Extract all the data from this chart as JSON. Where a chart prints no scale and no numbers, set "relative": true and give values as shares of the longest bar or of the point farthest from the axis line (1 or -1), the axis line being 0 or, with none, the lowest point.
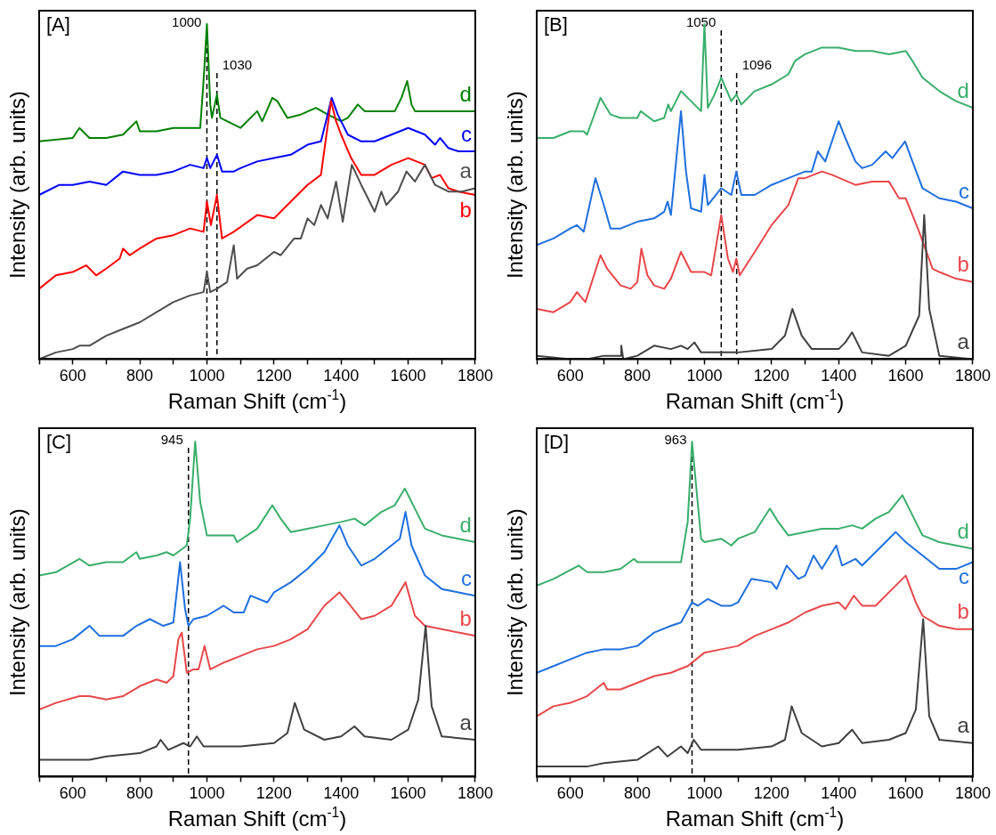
{
  "chart_data": [
    {
      "type": "line",
      "title": "[A]",
      "xlabel": "Raman Shift (cm$^{-1}$)",
      "ylabel": "Intensity (arb. units)",
      "relative": true,
      "marker": "none",
      "xlim": [
        500,
        1800
      ],
      "xticks": [
        {
          "value": 500,
          "label": null
        },
        600,
        {
          "value": 700,
          "label": null
        },
        800,
        {
          "value": 900,
          "label": null
        },
        1000,
        {
          "value": 1100,
          "label": null
        },
        1200,
        {
          "value": 1300,
          "label": null
        },
        1400,
        {
          "value": 1500,
          "label": null
        },
        1600,
        {
          "value": 1700,
          "label": null
        },
        1800
      ],
      "ref_lines": [
        {
          "axis": "x",
          "value": 1000,
          "label": "1000",
          "color": "#000000",
          "line_style": "dashed"
        },
        {
          "axis": "x",
          "value": 1030,
          "label": "1030",
          "color": "#000000",
          "line_style": "dashed"
        }
      ],
      "series": [
        {
          "name": "a",
          "color": "#4d4d4d",
          "x": [
            500,
            550,
            600,
            620,
            650,
            700,
            750,
            800,
            850,
            900,
            950,
            990,
            1000,
            1010,
            1030,
            1060,
            1080,
            1090,
            1120,
            1150,
            1200,
            1220,
            1260,
            1280,
            1300,
            1320,
            1340,
            1360,
            1385,
            1405,
            1432,
            1460,
            1500,
            1520,
            1535,
            1570,
            1595,
            1620,
            1650,
            1680,
            1720,
            1760,
            1800
          ],
          "values": [
            0.0,
            0.02,
            0.03,
            0.04,
            0.04,
            0.07,
            0.09,
            0.11,
            0.14,
            0.17,
            0.19,
            0.2,
            0.26,
            0.2,
            0.21,
            0.23,
            0.34,
            0.24,
            0.27,
            0.28,
            0.32,
            0.31,
            0.36,
            0.36,
            0.42,
            0.4,
            0.46,
            0.42,
            0.53,
            0.41,
            0.58,
            0.52,
            0.44,
            0.5,
            0.46,
            0.5,
            0.56,
            0.53,
            0.58,
            0.52,
            0.5,
            0.5,
            0.51
          ]
        },
        {
          "name": "b",
          "color": "#ff0000",
          "x": [
            500,
            550,
            600,
            640,
            670,
            700,
            740,
            750,
            770,
            800,
            850,
            900,
            950,
            990,
            1000,
            1012,
            1030,
            1045,
            1080,
            1150,
            1200,
            1250,
            1300,
            1340,
            1355,
            1370,
            1385,
            1400,
            1430,
            1460,
            1500,
            1550,
            1600,
            1650,
            1670,
            1695,
            1720,
            1750,
            1800
          ],
          "values": [
            0.21,
            0.25,
            0.26,
            0.28,
            0.25,
            0.27,
            0.3,
            0.33,
            0.31,
            0.33,
            0.36,
            0.37,
            0.39,
            0.38,
            0.47,
            0.4,
            0.49,
            0.36,
            0.38,
            0.43,
            0.42,
            0.47,
            0.52,
            0.55,
            0.66,
            0.77,
            0.71,
            0.67,
            0.6,
            0.55,
            0.55,
            0.58,
            0.6,
            0.58,
            0.54,
            0.55,
            0.51,
            0.5,
            0.49
          ]
        },
        {
          "name": "c",
          "color": "#0000ff",
          "x": [
            500,
            560,
            600,
            650,
            700,
            750,
            800,
            850,
            900,
            950,
            990,
            1000,
            1010,
            1030,
            1045,
            1080,
            1100,
            1150,
            1200,
            1250,
            1300,
            1340,
            1355,
            1372,
            1390,
            1420,
            1460,
            1500,
            1550,
            1600,
            1650,
            1680,
            1695,
            1720,
            1750,
            1800
          ],
          "values": [
            0.49,
            0.52,
            0.52,
            0.53,
            0.52,
            0.56,
            0.55,
            0.55,
            0.56,
            0.58,
            0.57,
            0.6,
            0.57,
            0.61,
            0.56,
            0.56,
            0.57,
            0.59,
            0.6,
            0.61,
            0.64,
            0.65,
            0.71,
            0.78,
            0.73,
            0.67,
            0.65,
            0.65,
            0.67,
            0.69,
            0.67,
            0.64,
            0.66,
            0.63,
            0.62,
            0.62
          ]
        },
        {
          "name": "d",
          "color": "#008000",
          "x": [
            500,
            600,
            620,
            650,
            700,
            750,
            790,
            800,
            850,
            900,
            950,
            980,
            990,
            1000,
            1010,
            1015,
            1030,
            1040,
            1060,
            1100,
            1150,
            1165,
            1195,
            1210,
            1240,
            1280,
            1325,
            1360,
            1400,
            1420,
            1450,
            1470,
            1500,
            1560,
            1580,
            1597,
            1610,
            1620,
            1700,
            1800
          ],
          "values": [
            0.65,
            0.66,
            0.69,
            0.66,
            0.66,
            0.67,
            0.71,
            0.68,
            0.68,
            0.69,
            0.69,
            0.69,
            0.83,
            1.0,
            0.76,
            0.72,
            0.79,
            0.72,
            0.71,
            0.69,
            0.74,
            0.71,
            0.78,
            0.77,
            0.72,
            0.73,
            0.75,
            0.73,
            0.71,
            0.72,
            0.76,
            0.74,
            0.74,
            0.74,
            0.78,
            0.83,
            0.76,
            0.74,
            0.74,
            0.74
          ]
        }
      ]
    },
    {
      "type": "line",
      "title": "[B]",
      "xlabel": "Raman Shift (cm$^{-1}$)",
      "ylabel": "Intensity (arb. units)",
      "relative": true,
      "marker": "none",
      "xlim": [
        500,
        1800
      ],
      "xticks": [
        {
          "value": 500,
          "label": null
        },
        600,
        {
          "value": 700,
          "label": null
        },
        800,
        {
          "value": 900,
          "label": null
        },
        1000,
        {
          "value": 1100,
          "label": null
        },
        1200,
        {
          "value": 1300,
          "label": null
        },
        1400,
        {
          "value": 1500,
          "label": null
        },
        1600,
        {
          "value": 1700,
          "label": null
        },
        1800
      ],
      "ref_lines": [
        {
          "axis": "x",
          "value": 1050,
          "label": "1050",
          "color": "#000000",
          "line_style": "dashed"
        },
        {
          "axis": "x",
          "value": 1096,
          "label": "1096",
          "color": "#000000",
          "line_style": "dashed"
        }
      ],
      "series": [
        {
          "name": "a",
          "color": "#404040",
          "x": [
            500,
            600,
            650,
            700,
            750,
            752,
            758,
            800,
            850,
            900,
            930,
            950,
            970,
            990,
            1050,
            1100,
            1200,
            1240,
            1262,
            1290,
            1320,
            1400,
            1420,
            1440,
            1470,
            1550,
            1600,
            1640,
            1655,
            1670,
            1700,
            1800
          ],
          "values": [
            0.01,
            0.0,
            0.0,
            0.01,
            0.01,
            0.04,
            0.0,
            0.01,
            0.04,
            0.03,
            0.04,
            0.03,
            0.05,
            0.02,
            0.02,
            0.02,
            0.03,
            0.07,
            0.15,
            0.07,
            0.03,
            0.03,
            0.05,
            0.08,
            0.02,
            0.01,
            0.04,
            0.13,
            0.43,
            0.15,
            0.01,
            0.0
          ]
        },
        {
          "name": "b",
          "color": "#e8474a",
          "x": [
            500,
            550,
            600,
            620,
            645,
            690,
            710,
            750,
            780,
            800,
            812,
            830,
            850,
            880,
            900,
            930,
            960,
            1000,
            1020,
            1050,
            1070,
            1085,
            1095,
            1105,
            1150,
            1200,
            1250,
            1280,
            1300,
            1350,
            1380,
            1450,
            1500,
            1550,
            1580,
            1600,
            1640,
            1680,
            1700,
            1750,
            1800
          ],
          "values": [
            0.15,
            0.14,
            0.17,
            0.2,
            0.17,
            0.31,
            0.27,
            0.22,
            0.21,
            0.23,
            0.33,
            0.25,
            0.22,
            0.21,
            0.24,
            0.32,
            0.26,
            0.26,
            0.25,
            0.43,
            0.3,
            0.26,
            0.3,
            0.25,
            0.32,
            0.4,
            0.46,
            0.54,
            0.54,
            0.56,
            0.55,
            0.52,
            0.53,
            0.53,
            0.48,
            0.48,
            0.38,
            0.27,
            0.26,
            0.24,
            0.23
          ]
        },
        {
          "name": "c",
          "color": "#1f6fdf",
          "x": [
            500,
            550,
            600,
            620,
            640,
            675,
            700,
            720,
            750,
            800,
            850,
            880,
            890,
            900,
            930,
            945,
            960,
            990,
            1000,
            1010,
            1050,
            1080,
            1095,
            1110,
            1150,
            1200,
            1250,
            1300,
            1320,
            1338,
            1360,
            1400,
            1420,
            1450,
            1470,
            1500,
            1540,
            1560,
            1598,
            1620,
            1650,
            1700,
            1750,
            1800
          ],
          "values": [
            0.34,
            0.36,
            0.39,
            0.4,
            0.38,
            0.54,
            0.46,
            0.39,
            0.39,
            0.41,
            0.42,
            0.44,
            0.47,
            0.43,
            0.74,
            0.56,
            0.45,
            0.44,
            0.55,
            0.46,
            0.51,
            0.49,
            0.56,
            0.49,
            0.49,
            0.52,
            0.54,
            0.56,
            0.56,
            0.62,
            0.59,
            0.71,
            0.66,
            0.59,
            0.57,
            0.58,
            0.62,
            0.6,
            0.65,
            0.59,
            0.51,
            0.48,
            0.47,
            0.45
          ]
        },
        {
          "name": "d",
          "color": "#3aae6b",
          "x": [
            500,
            550,
            600,
            640,
            650,
            690,
            720,
            750,
            800,
            810,
            850,
            880,
            892,
            900,
            930,
            950,
            990,
            1000,
            1010,
            1030,
            1050,
            1080,
            1095,
            1110,
            1150,
            1200,
            1250,
            1270,
            1300,
            1350,
            1400,
            1450,
            1500,
            1550,
            1600,
            1620,
            1650,
            1700,
            1750,
            1800
          ],
          "values": [
            0.66,
            0.66,
            0.68,
            0.68,
            0.67,
            0.78,
            0.73,
            0.72,
            0.72,
            0.74,
            0.71,
            0.72,
            0.76,
            0.74,
            0.8,
            0.78,
            0.74,
            1.0,
            0.75,
            0.79,
            0.84,
            0.77,
            0.79,
            0.76,
            0.8,
            0.82,
            0.85,
            0.89,
            0.91,
            0.93,
            0.93,
            0.92,
            0.92,
            0.91,
            0.92,
            0.89,
            0.84,
            0.8,
            0.77,
            0.75
          ]
        }
      ]
    },
    {
      "type": "line",
      "title": "[C]",
      "xlabel": "Raman Shift (cm$^{-1}$)",
      "ylabel": "Intensity (arb. units)",
      "relative": true,
      "marker": "none",
      "xlim": [
        500,
        1800
      ],
      "xticks": [
        {
          "value": 500,
          "label": null
        },
        600,
        {
          "value": 700,
          "label": null
        },
        800,
        {
          "value": 900,
          "label": null
        },
        1000,
        {
          "value": 1100,
          "label": null
        },
        1200,
        {
          "value": 1300,
          "label": null
        },
        1400,
        {
          "value": 1500,
          "label": null
        },
        1600,
        {
          "value": 1700,
          "label": null
        },
        1800
      ],
      "ref_lines": [
        {
          "axis": "x",
          "value": 945,
          "label": "945",
          "color": "#000000",
          "line_style": "dashed"
        }
      ],
      "series": [
        {
          "name": "a",
          "color": "#404040",
          "x": [
            500,
            600,
            650,
            700,
            800,
            850,
            862,
            885,
            930,
            950,
            970,
            990,
            1100,
            1200,
            1240,
            1262,
            1290,
            1350,
            1400,
            1440,
            1470,
            1550,
            1600,
            1630,
            1652,
            1670,
            1700,
            1800
          ],
          "values": [
            0.05,
            0.05,
            0.05,
            0.06,
            0.07,
            0.09,
            0.11,
            0.08,
            0.1,
            0.09,
            0.12,
            0.09,
            0.09,
            0.1,
            0.13,
            0.22,
            0.14,
            0.11,
            0.12,
            0.15,
            0.12,
            0.11,
            0.14,
            0.23,
            0.45,
            0.21,
            0.12,
            0.11
          ]
        },
        {
          "name": "b",
          "color": "#e8474a",
          "x": [
            500,
            550,
            620,
            650,
            700,
            750,
            800,
            850,
            880,
            900,
            915,
            925,
            940,
            960,
            975,
            993,
            1010,
            1050,
            1100,
            1150,
            1200,
            1250,
            1300,
            1350,
            1395,
            1420,
            1460,
            1500,
            1550,
            1592,
            1620,
            1650,
            1700,
            1750,
            1800
          ],
          "values": [
            0.2,
            0.22,
            0.24,
            0.24,
            0.23,
            0.24,
            0.27,
            0.29,
            0.28,
            0.3,
            0.41,
            0.43,
            0.31,
            0.32,
            0.32,
            0.39,
            0.32,
            0.34,
            0.36,
            0.38,
            0.39,
            0.41,
            0.44,
            0.51,
            0.55,
            0.52,
            0.47,
            0.48,
            0.51,
            0.58,
            0.48,
            0.45,
            0.44,
            0.43,
            0.42
          ]
        },
        {
          "name": "c",
          "color": "#1f6fdf",
          "x": [
            500,
            550,
            600,
            650,
            680,
            720,
            750,
            790,
            830,
            870,
            900,
            920,
            935,
            945,
            960,
            1000,
            1050,
            1080,
            1110,
            1130,
            1180,
            1200,
            1250,
            1300,
            1350,
            1395,
            1420,
            1460,
            1500,
            1550,
            1575,
            1592,
            1610,
            1650,
            1700,
            1750,
            1800
          ],
          "values": [
            0.39,
            0.39,
            0.41,
            0.45,
            0.42,
            0.42,
            0.42,
            0.45,
            0.47,
            0.45,
            0.46,
            0.64,
            0.5,
            0.45,
            0.47,
            0.48,
            0.51,
            0.49,
            0.49,
            0.54,
            0.52,
            0.55,
            0.58,
            0.62,
            0.67,
            0.75,
            0.69,
            0.63,
            0.65,
            0.69,
            0.71,
            0.79,
            0.69,
            0.6,
            0.56,
            0.55,
            0.54
          ]
        },
        {
          "name": "d",
          "color": "#3aae6b",
          "x": [
            500,
            550,
            620,
            650,
            700,
            750,
            790,
            800,
            850,
            880,
            900,
            940,
            950,
            965,
            980,
            1000,
            1050,
            1080,
            1090,
            1150,
            1195,
            1220,
            1250,
            1300,
            1350,
            1400,
            1440,
            1470,
            1520,
            1560,
            1590,
            1620,
            1650,
            1700,
            1750,
            1800
          ],
          "values": [
            0.6,
            0.61,
            0.65,
            0.63,
            0.64,
            0.64,
            0.67,
            0.65,
            0.66,
            0.67,
            0.66,
            0.69,
            0.77,
            1.0,
            0.82,
            0.72,
            0.72,
            0.72,
            0.7,
            0.74,
            0.81,
            0.77,
            0.73,
            0.74,
            0.75,
            0.76,
            0.77,
            0.75,
            0.79,
            0.81,
            0.86,
            0.8,
            0.74,
            0.72,
            0.71,
            0.7
          ]
        }
      ]
    },
    {
      "type": "line",
      "title": "[D]",
      "xlabel": "Raman Shift (cm$^{-1}$)",
      "ylabel": "Intensity (arb. units)",
      "relative": true,
      "marker": "none",
      "xlim": [
        500,
        1800
      ],
      "xticks": [
        {
          "value": 500,
          "label": null
        },
        600,
        {
          "value": 700,
          "label": null
        },
        800,
        {
          "value": 900,
          "label": null
        },
        1000,
        {
          "value": 1100,
          "label": null
        },
        1200,
        {
          "value": 1300,
          "label": null
        },
        1400,
        {
          "value": 1500,
          "label": null
        },
        1600,
        {
          "value": 1700,
          "label": null
        },
        1800
      ],
      "ref_lines": [
        {
          "axis": "x",
          "value": 963,
          "label": "963",
          "color": "#000000",
          "line_style": "dashed"
        }
      ],
      "series": [
        {
          "name": "a",
          "color": "#404040",
          "x": [
            500,
            600,
            650,
            700,
            800,
            862,
            890,
            930,
            950,
            968,
            990,
            1100,
            1200,
            1240,
            1260,
            1290,
            1350,
            1400,
            1440,
            1470,
            1550,
            1600,
            1630,
            1652,
            1670,
            1700,
            1800
          ],
          "values": [
            0.03,
            0.03,
            0.03,
            0.04,
            0.05,
            0.09,
            0.06,
            0.09,
            0.07,
            0.11,
            0.08,
            0.08,
            0.09,
            0.11,
            0.21,
            0.13,
            0.09,
            0.1,
            0.14,
            0.1,
            0.11,
            0.13,
            0.2,
            0.47,
            0.18,
            0.11,
            0.1
          ]
        },
        {
          "name": "b",
          "color": "#e8474a",
          "x": [
            500,
            550,
            600,
            650,
            700,
            710,
            750,
            800,
            850,
            900,
            950,
            1000,
            1050,
            1100,
            1150,
            1200,
            1250,
            1300,
            1350,
            1400,
            1420,
            1445,
            1470,
            1510,
            1550,
            1600,
            1630,
            1650,
            1700,
            1750,
            1800
          ],
          "values": [
            0.18,
            0.21,
            0.22,
            0.24,
            0.28,
            0.26,
            0.26,
            0.28,
            0.3,
            0.31,
            0.33,
            0.37,
            0.38,
            0.39,
            0.42,
            0.44,
            0.46,
            0.49,
            0.51,
            0.52,
            0.5,
            0.54,
            0.51,
            0.51,
            0.55,
            0.6,
            0.52,
            0.48,
            0.45,
            0.44,
            0.44
          ]
        },
        {
          "name": "c",
          "color": "#1f6fdf",
          "x": [
            500,
            550,
            600,
            650,
            700,
            750,
            800,
            850,
            900,
            930,
            963,
            980,
            1010,
            1050,
            1080,
            1100,
            1140,
            1200,
            1215,
            1245,
            1280,
            1300,
            1325,
            1350,
            1393,
            1410,
            1450,
            1470,
            1500,
            1540,
            1570,
            1600,
            1650,
            1700,
            1750,
            1800
          ],
          "values": [
            0.31,
            0.33,
            0.35,
            0.37,
            0.38,
            0.38,
            0.39,
            0.43,
            0.45,
            0.46,
            0.52,
            0.51,
            0.53,
            0.51,
            0.51,
            0.52,
            0.59,
            0.58,
            0.56,
            0.63,
            0.59,
            0.6,
            0.66,
            0.62,
            0.69,
            0.63,
            0.65,
            0.63,
            0.66,
            0.7,
            0.73,
            0.7,
            0.66,
            0.62,
            0.62,
            0.64
          ]
        },
        {
          "name": "d",
          "color": "#3aae6b",
          "x": [
            500,
            550,
            625,
            650,
            700,
            750,
            790,
            800,
            850,
            900,
            930,
            950,
            963,
            975,
            990,
            1000,
            1050,
            1080,
            1100,
            1150,
            1195,
            1220,
            1250,
            1300,
            1350,
            1400,
            1440,
            1470,
            1510,
            1550,
            1590,
            1620,
            1650,
            1700,
            1750,
            1800
          ],
          "values": [
            0.57,
            0.59,
            0.63,
            0.61,
            0.61,
            0.62,
            0.65,
            0.64,
            0.64,
            0.64,
            0.64,
            0.76,
            1.0,
            0.87,
            0.71,
            0.7,
            0.71,
            0.69,
            0.71,
            0.73,
            0.8,
            0.76,
            0.72,
            0.73,
            0.74,
            0.74,
            0.75,
            0.74,
            0.77,
            0.79,
            0.84,
            0.78,
            0.72,
            0.7,
            0.69,
            0.68
          ]
        }
      ]
    }
  ]
}
